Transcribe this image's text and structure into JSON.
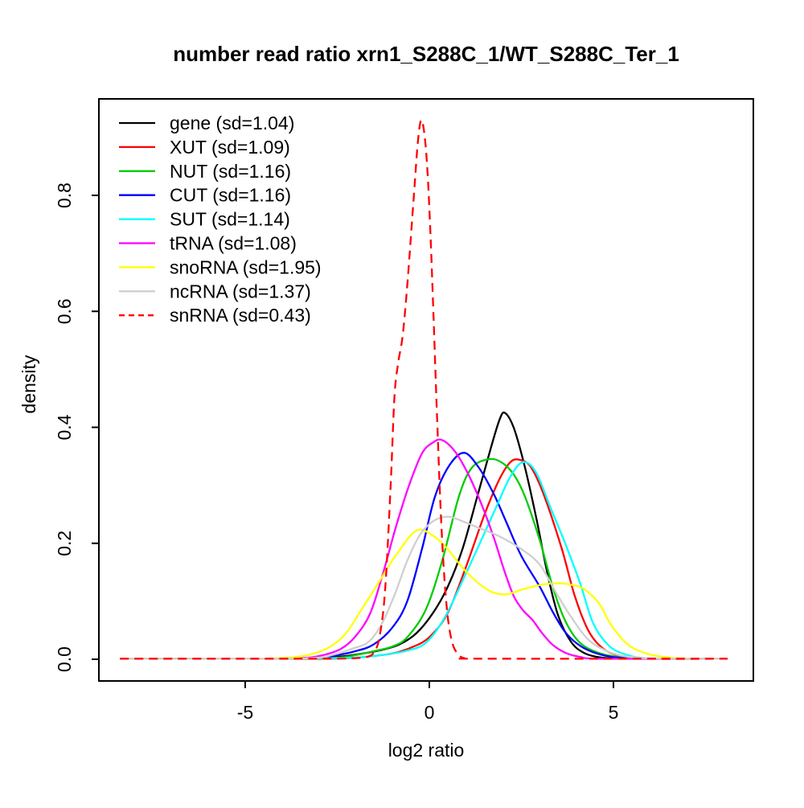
{
  "chart_data": {
    "type": "line",
    "variant": "kernel-density",
    "title": "number read ratio xrn1_S288C_1/WT_S288C_Ter_1",
    "xlabel": "log2 ratio",
    "ylabel": "density",
    "xlim": [
      -9,
      8.8
    ],
    "ylim": [
      0,
      0.97
    ],
    "grid": false,
    "legend_position": "top-left",
    "background_color": "#ffffff",
    "box_color": "#000000",
    "x_ticks": [
      {
        "label": "-5",
        "value": -5
      },
      {
        "label": "0",
        "value": 0
      },
      {
        "label": "5",
        "value": 5
      }
    ],
    "y_ticks": [
      {
        "label": "0.0",
        "value": 0.0
      },
      {
        "label": "0.2",
        "value": 0.2
      },
      {
        "label": "0.4",
        "value": 0.4
      },
      {
        "label": "0.6",
        "value": 0.6
      },
      {
        "label": "0.8",
        "value": 0.8
      }
    ],
    "series": [
      {
        "name": "gene",
        "sd": 1.04,
        "legend_label": "gene (sd=1.04)",
        "color": "#000000",
        "dashed": false,
        "points": [
          [
            -8.4,
            0.001
          ],
          [
            -6,
            0.001
          ],
          [
            -4.5,
            0.001
          ],
          [
            -3.1,
            0.002
          ],
          [
            -2.5,
            0.004
          ],
          [
            -1.9,
            0.009
          ],
          [
            -1.3,
            0.016
          ],
          [
            -0.8,
            0.026
          ],
          [
            -0.35,
            0.045
          ],
          [
            0.1,
            0.08
          ],
          [
            0.5,
            0.125
          ],
          [
            0.9,
            0.19
          ],
          [
            1.3,
            0.28
          ],
          [
            1.65,
            0.36
          ],
          [
            1.9,
            0.412
          ],
          [
            2.05,
            0.425
          ],
          [
            2.3,
            0.398
          ],
          [
            2.6,
            0.33
          ],
          [
            2.9,
            0.245
          ],
          [
            3.2,
            0.15
          ],
          [
            3.5,
            0.075
          ],
          [
            3.85,
            0.03
          ],
          [
            4.2,
            0.011
          ],
          [
            4.65,
            0.003
          ],
          [
            5.3,
            0.001
          ],
          [
            6.5,
            0.001
          ],
          [
            8.1,
            0.001
          ]
        ]
      },
      {
        "name": "XUT",
        "sd": 1.09,
        "legend_label": "XUT (sd=1.09)",
        "color": "#FF0000",
        "dashed": false,
        "points": [
          [
            -8.4,
            0.001
          ],
          [
            -5.5,
            0.001
          ],
          [
            -3,
            0.001
          ],
          [
            -2.2,
            0.002
          ],
          [
            -1.6,
            0.005
          ],
          [
            -1,
            0.01
          ],
          [
            -0.5,
            0.02
          ],
          [
            0,
            0.038
          ],
          [
            0.5,
            0.08
          ],
          [
            1,
            0.16
          ],
          [
            1.5,
            0.25
          ],
          [
            1.9,
            0.31
          ],
          [
            2.2,
            0.34
          ],
          [
            2.45,
            0.344
          ],
          [
            2.75,
            0.332
          ],
          [
            3.1,
            0.285
          ],
          [
            3.6,
            0.19
          ],
          [
            3.96,
            0.107
          ],
          [
            4.35,
            0.046
          ],
          [
            4.8,
            0.015
          ],
          [
            5.4,
            0.004
          ],
          [
            6.2,
            0.001
          ],
          [
            8.1,
            0.001
          ]
        ]
      },
      {
        "name": "NUT",
        "sd": 1.16,
        "legend_label": "NUT (sd=1.16)",
        "color": "#00CC00",
        "dashed": false,
        "points": [
          [
            -8.4,
            0.001
          ],
          [
            -5,
            0.001
          ],
          [
            -2.7,
            0.002
          ],
          [
            -2.1,
            0.006
          ],
          [
            -1.5,
            0.014
          ],
          [
            -1,
            0.022
          ],
          [
            -0.6,
            0.038
          ],
          [
            -0.1,
            0.085
          ],
          [
            0.35,
            0.17
          ],
          [
            0.8,
            0.28
          ],
          [
            1.15,
            0.33
          ],
          [
            1.6,
            0.345
          ],
          [
            1.95,
            0.34
          ],
          [
            2.3,
            0.318
          ],
          [
            2.6,
            0.28
          ],
          [
            3,
            0.205
          ],
          [
            3.37,
            0.121
          ],
          [
            3.7,
            0.065
          ],
          [
            4.1,
            0.028
          ],
          [
            4.65,
            0.01
          ],
          [
            5.3,
            0.003
          ],
          [
            6.2,
            0.001
          ],
          [
            8.1,
            0.001
          ]
        ]
      },
      {
        "name": "CUT",
        "sd": 1.16,
        "legend_label": "CUT (sd=1.16)",
        "color": "#0000FF",
        "dashed": false,
        "points": [
          [
            -8.4,
            0.001
          ],
          [
            -5,
            0.001
          ],
          [
            -3.2,
            0.002
          ],
          [
            -2.6,
            0.006
          ],
          [
            -2,
            0.014
          ],
          [
            -1.5,
            0.026
          ],
          [
            -1,
            0.055
          ],
          [
            -0.6,
            0.1
          ],
          [
            -0.2,
            0.19
          ],
          [
            0.15,
            0.28
          ],
          [
            0.55,
            0.335
          ],
          [
            0.95,
            0.356
          ],
          [
            1.35,
            0.33
          ],
          [
            1.75,
            0.285
          ],
          [
            2.1,
            0.235
          ],
          [
            2.5,
            0.178
          ],
          [
            3,
            0.125
          ],
          [
            3.35,
            0.082
          ],
          [
            3.7,
            0.046
          ],
          [
            4.1,
            0.023
          ],
          [
            4.55,
            0.01
          ],
          [
            5.1,
            0.003
          ],
          [
            6,
            0.001
          ],
          [
            8.1,
            0.001
          ]
        ]
      },
      {
        "name": "SUT",
        "sd": 1.14,
        "legend_label": "SUT (sd=1.14)",
        "color": "#00FFFF",
        "dashed": false,
        "points": [
          [
            -8.4,
            0.001
          ],
          [
            -5,
            0.001
          ],
          [
            -2.4,
            0.002
          ],
          [
            -1.8,
            0.004
          ],
          [
            -1.2,
            0.008
          ],
          [
            -0.6,
            0.015
          ],
          [
            -0.1,
            0.028
          ],
          [
            0.4,
            0.07
          ],
          [
            0.9,
            0.135
          ],
          [
            1.3,
            0.19
          ],
          [
            1.8,
            0.26
          ],
          [
            2.2,
            0.315
          ],
          [
            2.55,
            0.34
          ],
          [
            2.9,
            0.322
          ],
          [
            3.3,
            0.26
          ],
          [
            3.7,
            0.198
          ],
          [
            4.1,
            0.13
          ],
          [
            4.45,
            0.062
          ],
          [
            4.9,
            0.022
          ],
          [
            5.4,
            0.007
          ],
          [
            5.9,
            0.002
          ],
          [
            7,
            0.001
          ],
          [
            8.1,
            0.001
          ]
        ]
      },
      {
        "name": "tRNA",
        "sd": 1.08,
        "legend_label": "tRNA (sd=1.08)",
        "color": "#FF00FF",
        "dashed": false,
        "points": [
          [
            -8.4,
            0.001
          ],
          [
            -5,
            0.001
          ],
          [
            -3.5,
            0.002
          ],
          [
            -2.9,
            0.007
          ],
          [
            -2.4,
            0.018
          ],
          [
            -2,
            0.04
          ],
          [
            -1.6,
            0.08
          ],
          [
            -1.25,
            0.15
          ],
          [
            -0.9,
            0.23
          ],
          [
            -0.55,
            0.3
          ],
          [
            -0.2,
            0.355
          ],
          [
            0.1,
            0.374
          ],
          [
            0.35,
            0.378
          ],
          [
            0.7,
            0.358
          ],
          [
            1.05,
            0.32
          ],
          [
            1.4,
            0.27
          ],
          [
            1.75,
            0.21
          ],
          [
            2.05,
            0.15
          ],
          [
            2.3,
            0.108
          ],
          [
            2.55,
            0.084
          ],
          [
            2.8,
            0.068
          ],
          [
            3.05,
            0.046
          ],
          [
            3.35,
            0.025
          ],
          [
            3.7,
            0.011
          ],
          [
            4.1,
            0.004
          ],
          [
            4.7,
            0.001
          ],
          [
            8.1,
            0.001
          ]
        ]
      },
      {
        "name": "snoRNA",
        "sd": 1.95,
        "legend_label": "snoRNA (sd=1.95)",
        "color": "#FFFF00",
        "dashed": false,
        "points": [
          [
            -8.4,
            0.001
          ],
          [
            -5.2,
            0.001
          ],
          [
            -4.1,
            0.002
          ],
          [
            -3.4,
            0.006
          ],
          [
            -2.8,
            0.018
          ],
          [
            -2.3,
            0.042
          ],
          [
            -1.9,
            0.08
          ],
          [
            -1.4,
            0.13
          ],
          [
            -0.9,
            0.18
          ],
          [
            -0.35,
            0.222
          ],
          [
            0.1,
            0.213
          ],
          [
            0.5,
            0.19
          ],
          [
            0.9,
            0.158
          ],
          [
            1.3,
            0.133
          ],
          [
            1.7,
            0.116
          ],
          [
            2.1,
            0.112
          ],
          [
            2.5,
            0.12
          ],
          [
            3,
            0.128
          ],
          [
            3.5,
            0.131
          ],
          [
            3.9,
            0.128
          ],
          [
            4.2,
            0.121
          ],
          [
            4.6,
            0.097
          ],
          [
            4.95,
            0.058
          ],
          [
            5.4,
            0.025
          ],
          [
            5.9,
            0.01
          ],
          [
            6.5,
            0.003
          ],
          [
            7.2,
            0.001
          ],
          [
            8.1,
            0.001
          ]
        ]
      },
      {
        "name": "ncRNA",
        "sd": 1.37,
        "legend_label": "ncRNA (sd=1.37)",
        "color": "#CFCFCF",
        "dashed": false,
        "points": [
          [
            -8.4,
            0.001
          ],
          [
            -5,
            0.001
          ],
          [
            -3.2,
            0.002
          ],
          [
            -2.6,
            0.008
          ],
          [
            -2.1,
            0.018
          ],
          [
            -1.65,
            0.03
          ],
          [
            -1.3,
            0.06
          ],
          [
            -0.95,
            0.11
          ],
          [
            -0.6,
            0.17
          ],
          [
            -0.25,
            0.215
          ],
          [
            0.1,
            0.238
          ],
          [
            0.5,
            0.246
          ],
          [
            0.9,
            0.238
          ],
          [
            1.4,
            0.225
          ],
          [
            1.9,
            0.212
          ],
          [
            2.5,
            0.19
          ],
          [
            3,
            0.163
          ],
          [
            3.45,
            0.114
          ],
          [
            3.85,
            0.073
          ],
          [
            4.35,
            0.032
          ],
          [
            4.95,
            0.011
          ],
          [
            5.6,
            0.003
          ],
          [
            6.5,
            0.001
          ],
          [
            8.1,
            0.001
          ]
        ]
      },
      {
        "name": "snRNA",
        "sd": 0.43,
        "legend_label": "snRNA (sd=0.43)",
        "color": "#FF0000",
        "dashed": true,
        "points": [
          [
            -8.4,
            0.001
          ],
          [
            -5,
            0.001
          ],
          [
            -2.6,
            0.001
          ],
          [
            -2,
            0.002
          ],
          [
            -1.7,
            0.004
          ],
          [
            -1.5,
            0.012
          ],
          [
            -1.35,
            0.04
          ],
          [
            -1.2,
            0.12
          ],
          [
            -1.05,
            0.3
          ],
          [
            -0.95,
            0.45
          ],
          [
            -0.85,
            0.51
          ],
          [
            -0.72,
            0.56
          ],
          [
            -0.58,
            0.66
          ],
          [
            -0.42,
            0.8
          ],
          [
            -0.3,
            0.9
          ],
          [
            -0.2,
            0.929
          ],
          [
            -0.08,
            0.87
          ],
          [
            0.02,
            0.75
          ],
          [
            0.12,
            0.58
          ],
          [
            0.22,
            0.4
          ],
          [
            0.32,
            0.24
          ],
          [
            0.42,
            0.13
          ],
          [
            0.52,
            0.063
          ],
          [
            0.64,
            0.025
          ],
          [
            0.78,
            0.009
          ],
          [
            0.95,
            0.002
          ],
          [
            1.4,
            0.001
          ],
          [
            8.1,
            0.001
          ]
        ]
      }
    ]
  }
}
